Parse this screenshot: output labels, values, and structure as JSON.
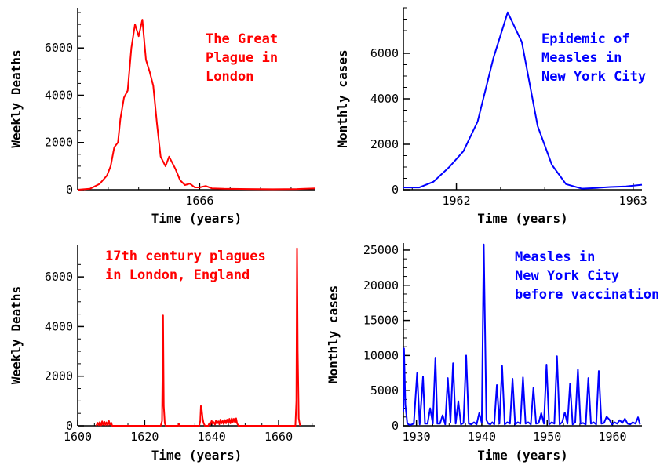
{
  "chart_data": [
    {
      "type": "line",
      "annotation": [
        "The Great",
        "Plague in",
        "London"
      ],
      "xlabel": "Time (years)",
      "ylabel": "Weekly Deaths",
      "xlim": [
        1665.0,
        1666.95
      ],
      "ylim": [
        0,
        7700
      ],
      "xticks": [
        1666
      ],
      "yticks": [
        0,
        2000,
        4000,
        6000
      ],
      "color": "#ff0000",
      "grid": false,
      "series": [
        {
          "x": [
            1665.0,
            1665.1,
            1665.18,
            1665.24,
            1665.27,
            1665.3,
            1665.33,
            1665.35,
            1665.38,
            1665.41,
            1665.44,
            1665.47,
            1665.5,
            1665.53,
            1665.56,
            1665.59,
            1665.62,
            1665.65,
            1665.68,
            1665.72,
            1665.75,
            1665.8,
            1665.84,
            1665.88,
            1665.92,
            1665.96,
            1666.0,
            1666.05,
            1666.1,
            1666.2,
            1666.4,
            1666.6,
            1666.8,
            1666.95
          ],
          "y": [
            0,
            40,
            250,
            600,
            1000,
            1800,
            2000,
            3000,
            3900,
            4200,
            6000,
            7000,
            6500,
            7200,
            5500,
            5000,
            4400,
            2800,
            1400,
            1000,
            1400,
            900,
            400,
            200,
            260,
            100,
            100,
            160,
            60,
            40,
            30,
            20,
            30,
            60
          ]
        }
      ]
    },
    {
      "type": "line",
      "annotation": [
        "Epidemic of",
        "Measles in",
        "New York City"
      ],
      "xlabel": "Time (years)",
      "ylabel": "Monthly cases",
      "xlim": [
        1961.7,
        1963.05
      ],
      "ylim": [
        0,
        8000
      ],
      "xticks": [
        1962,
        1963
      ],
      "yticks": [
        0,
        2000,
        4000,
        6000
      ],
      "color": "#0000ff",
      "grid": false,
      "series": [
        {
          "x": [
            1961.7,
            1961.79,
            1961.87,
            1961.96,
            1962.04,
            1962.12,
            1962.21,
            1962.29,
            1962.37,
            1962.46,
            1962.54,
            1962.62,
            1962.71,
            1962.79,
            1962.87,
            1962.96,
            1963.05
          ],
          "y": [
            100,
            100,
            350,
            1000,
            1700,
            3000,
            5800,
            7800,
            6500,
            2800,
            1100,
            250,
            50,
            80,
            120,
            150,
            220
          ]
        }
      ]
    },
    {
      "type": "line",
      "annotation": [
        "17th century plagues",
        "in London, England"
      ],
      "xlabel": "Time (years)",
      "ylabel": "Weekly Deaths",
      "xlim": [
        1600,
        1671
      ],
      "ylim": [
        0,
        7300
      ],
      "xticks": [
        1600,
        1620,
        1640,
        1660
      ],
      "yticks": [
        0,
        2000,
        4000,
        6000
      ],
      "color": "#ff0000",
      "grid": false,
      "series": [
        {
          "x": [
            1605.5,
            1606,
            1606.3,
            1606.6,
            1607,
            1607.3,
            1607.6,
            1608,
            1608.3,
            1608.6,
            1609,
            1609.3,
            1609.6,
            1610,
            1610.3,
            1624.8,
            1625.2,
            1625.5,
            1625.7,
            1626,
            1626.3,
            1630,
            1630.2,
            1630.5,
            1636.3,
            1636.6,
            1636.8,
            1637,
            1637.3,
            1637.6,
            1638,
            1639,
            1639.3,
            1639.6,
            1640,
            1640.3,
            1640.6,
            1641,
            1641.3,
            1641.6,
            1642,
            1642.3,
            1642.6,
            1643,
            1643.3,
            1643.6,
            1644,
            1644.3,
            1644.6,
            1645,
            1645.3,
            1645.6,
            1646,
            1646.3,
            1646.6,
            1647,
            1647.3,
            1647.6,
            1648,
            1665,
            1665.3,
            1665.5,
            1665.7,
            1666,
            1666.4
          ],
          "y": [
            0,
            120,
            30,
            150,
            20,
            180,
            40,
            160,
            30,
            140,
            20,
            200,
            50,
            130,
            0,
            0,
            200,
            4450,
            800,
            100,
            0,
            0,
            80,
            0,
            0,
            200,
            800,
            700,
            300,
            100,
            0,
            0,
            100,
            50,
            200,
            80,
            150,
            50,
            220,
            90,
            180,
            60,
            250,
            100,
            200,
            70,
            230,
            100,
            250,
            120,
            280,
            100,
            300,
            150,
            280,
            120,
            300,
            100,
            0,
            0,
            1000,
            7150,
            3000,
            300,
            0
          ]
        }
      ]
    },
    {
      "type": "line",
      "annotation": [
        "Measles in",
        "New York City",
        "before vaccination"
      ],
      "xlabel": "Time (years)",
      "ylabel": "Monthly cases",
      "xlim": [
        1928,
        1964.5
      ],
      "ylim": [
        0,
        26000
      ],
      "xticks": [
        1930,
        1940,
        1950,
        1960
      ],
      "yticks": [
        0,
        5000,
        10000,
        15000,
        20000,
        25000
      ],
      "color": "#0000ff",
      "grid": false,
      "series": [
        {
          "x": [
            1928.0,
            1928.1,
            1928.3,
            1928.6,
            1929.0,
            1929.6,
            1930.1,
            1930.5,
            1931.0,
            1931.3,
            1931.7,
            1932.1,
            1932.5,
            1932.9,
            1933.2,
            1933.6,
            1934.0,
            1934.4,
            1934.8,
            1935.2,
            1935.6,
            1936.0,
            1936.4,
            1936.8,
            1937.2,
            1937.6,
            1938.0,
            1938.4,
            1938.8,
            1939.2,
            1939.6,
            1940.0,
            1940.3,
            1940.7,
            1941.0,
            1941.3,
            1941.6,
            1941.9,
            1942.3,
            1942.7,
            1943.1,
            1943.5,
            1943.9,
            1944.3,
            1944.7,
            1945.1,
            1945.5,
            1945.9,
            1946.3,
            1946.7,
            1947.1,
            1947.5,
            1947.9,
            1948.3,
            1948.7,
            1949.1,
            1949.5,
            1949.9,
            1950.3,
            1950.7,
            1951.1,
            1951.5,
            1951.9,
            1952.3,
            1952.7,
            1953.1,
            1953.5,
            1953.9,
            1954.3,
            1954.7,
            1955.1,
            1955.5,
            1955.9,
            1956.3,
            1956.7,
            1957.1,
            1957.5,
            1957.9,
            1958.3,
            1958.7,
            1959.1,
            1959.5,
            1959.9,
            1960.3,
            1960.7,
            1961.1,
            1961.5,
            1961.9,
            1962.3,
            1962.7,
            1963.1,
            1963.5,
            1963.9,
            1964.2
          ],
          "y": [
            2000,
            11000,
            3000,
            300,
            100,
            300,
            7500,
            200,
            7000,
            300,
            300,
            2500,
            300,
            9700,
            300,
            300,
            1500,
            200,
            6800,
            500,
            8900,
            300,
            3500,
            200,
            400,
            10000,
            300,
            200,
            500,
            200,
            1800,
            400,
            25800,
            800,
            300,
            200,
            500,
            200,
            5800,
            300,
            8500,
            200,
            500,
            300,
            6700,
            200,
            500,
            300,
            6900,
            300,
            500,
            200,
            5400,
            300,
            400,
            1800,
            300,
            8700,
            200,
            500,
            300,
            9900,
            200,
            500,
            1900,
            300,
            6000,
            200,
            500,
            8000,
            300,
            400,
            200,
            6800,
            300,
            500,
            200,
            7800,
            300,
            400,
            1300,
            900,
            200,
            500,
            300,
            800,
            400,
            1000,
            300,
            200,
            500,
            300,
            1200,
            200
          ]
        }
      ]
    }
  ]
}
